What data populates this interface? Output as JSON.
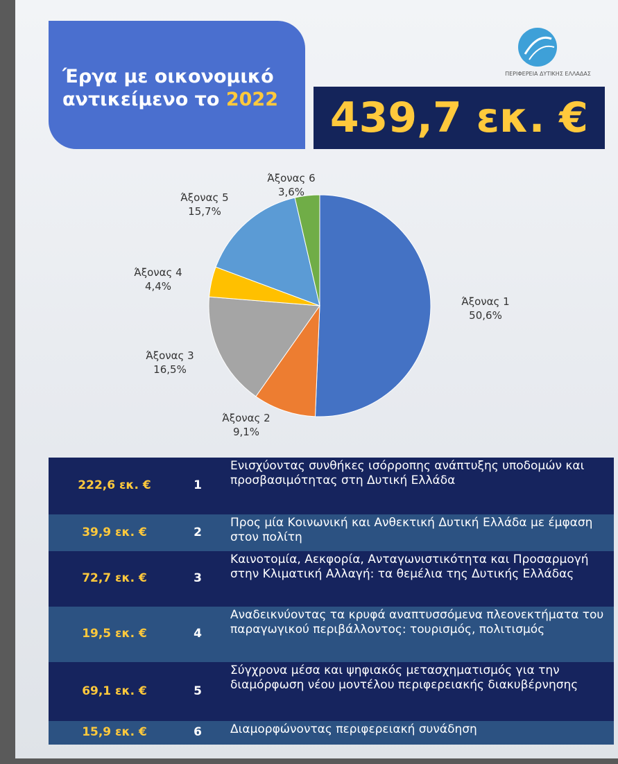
{
  "header": {
    "title_line1": "Έργα με οικονομικό",
    "title_line2": "αντικείμενο το",
    "title_year": "2022",
    "logo_text": "ΠΕΡΙΦΕΡΕΙΑ ΔΥΤΙΚΗΣ ΕΛΛΑΔΑΣ",
    "total": "439,7 εκ. €"
  },
  "chart_data": {
    "type": "pie",
    "categories": [
      "Άξονας 1",
      "Άξονας 2",
      "Άξονας 3",
      "Άξονας 4",
      "Άξονας 5",
      "Άξονας 6"
    ],
    "values": [
      50.6,
      9.1,
      16.5,
      4.4,
      15.7,
      3.6
    ],
    "value_labels": [
      "50,6%",
      "9,1%",
      "16,5%",
      "4,4%",
      "15,7%",
      "3,6%"
    ],
    "colors": [
      "#4472c4",
      "#ed7d31",
      "#a5a5a5",
      "#ffc000",
      "#5b9bd5",
      "#70ad47"
    ]
  },
  "table": {
    "rows": [
      [
        "222,6 εκ. €",
        "1",
        "Ενισχύοντας συνθήκες ισόρροπης ανάπτυξης υποδομών και προσβασιμότητας στη Δυτική Ελλάδα"
      ],
      [
        "39,9 εκ. €",
        "2",
        "Προς μία Κοινωνική και Ανθεκτική Δυτική Ελλάδα με έμφαση στον πολίτη"
      ],
      [
        "72,7 εκ. €",
        "3",
        "Καινοτομία, Αεκφορία, Ανταγωνιστικότητα και Προσαρμογή στην Κλιματική Αλλαγή: τα θεμέλια της Δυτικής Ελλάδας"
      ],
      [
        "19,5 εκ. €",
        "4",
        "Αναδεικνύοντας τα κρυφά αναπτυσσόμενα πλεονεκτήματα του παραγωγικού περιβάλλοντος: τουρισμός, πολιτισμός"
      ],
      [
        "69,1 εκ. €",
        "5",
        "Σύγχρονα μέσα και ψηφιακός μετασχηματισμός για την διαμόρφωση νέου μοντέλου περιφερειακής διακυβέρνησης"
      ],
      [
        "15,9 εκ. €",
        "6",
        "Διαμορφώνοντας περιφερειακή συνάδηση"
      ]
    ]
  }
}
